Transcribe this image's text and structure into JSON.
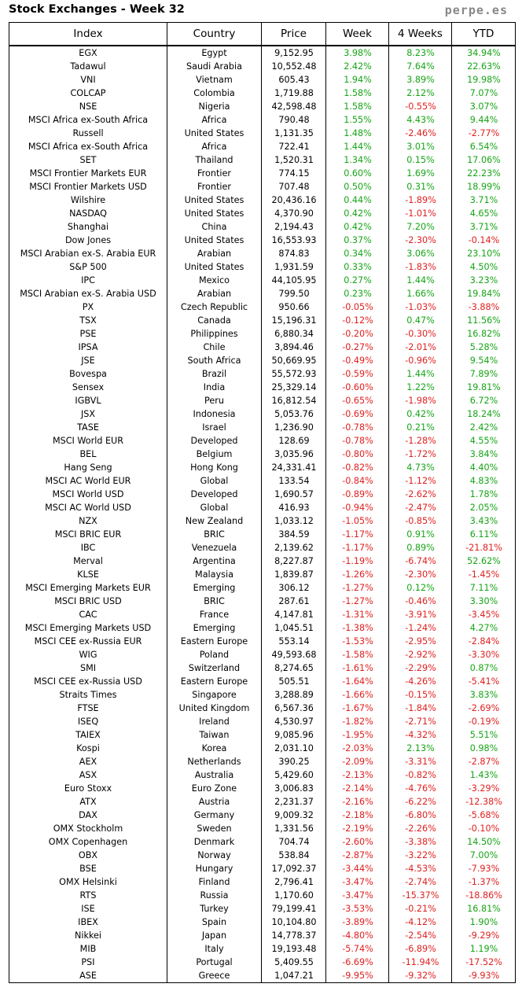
{
  "header": {
    "title": "Stock Exchanges - Week 32",
    "site": "perpe.es"
  },
  "columns": [
    "Index",
    "Country",
    "Price",
    "Week",
    "4 Weeks",
    "YTD"
  ],
  "colors": {
    "positive": "#16a516",
    "negative": "#e02020"
  },
  "rows": [
    [
      "EGX",
      "Egypt",
      "9,152.95",
      "3.98%",
      "8.23%",
      "34.94%"
    ],
    [
      "Tadawul",
      "Saudi Arabia",
      "10,552.48",
      "2.42%",
      "7.64%",
      "22.63%"
    ],
    [
      "VNI",
      "Vietnam",
      "605.43",
      "1.94%",
      "3.89%",
      "19.98%"
    ],
    [
      "COLCAP",
      "Colombia",
      "1,719.88",
      "1.58%",
      "2.12%",
      "7.07%"
    ],
    [
      "NSE",
      "Nigeria",
      "42,598.48",
      "1.58%",
      "-0.55%",
      "3.07%"
    ],
    [
      "MSCI Africa ex-South Africa",
      "Africa",
      "790.48",
      "1.55%",
      "4.43%",
      "9.44%"
    ],
    [
      "Russell",
      "United States",
      "1,131.35",
      "1.48%",
      "-2.46%",
      "-2.77%"
    ],
    [
      "MSCI Africa ex-South Africa",
      "Africa",
      "722.41",
      "1.44%",
      "3.01%",
      "6.54%"
    ],
    [
      "SET",
      "Thailand",
      "1,520.31",
      "1.34%",
      "0.15%",
      "17.06%"
    ],
    [
      "MSCI Frontier Markets EUR",
      "Frontier",
      "774.15",
      "0.60%",
      "1.69%",
      "22.23%"
    ],
    [
      "MSCI Frontier Markets USD",
      "Frontier",
      "707.48",
      "0.50%",
      "0.31%",
      "18.99%"
    ],
    [
      "Wilshire",
      "United States",
      "20,436.16",
      "0.44%",
      "-1.89%",
      "3.71%"
    ],
    [
      "NASDAQ",
      "United States",
      "4,370.90",
      "0.42%",
      "-1.01%",
      "4.65%"
    ],
    [
      "Shanghai",
      "China",
      "2,194.43",
      "0.42%",
      "7.20%",
      "3.71%"
    ],
    [
      "Dow Jones",
      "United States",
      "16,553.93",
      "0.37%",
      "-2.30%",
      "-0.14%"
    ],
    [
      "MSCI Arabian ex-S. Arabia EUR",
      "Arabian",
      "874.83",
      "0.34%",
      "3.06%",
      "23.10%"
    ],
    [
      "S&P 500",
      "United States",
      "1,931.59",
      "0.33%",
      "-1.83%",
      "4.50%"
    ],
    [
      "IPC",
      "Mexico",
      "44,105.95",
      "0.27%",
      "1.44%",
      "3.23%"
    ],
    [
      "MSCI Arabian ex-S. Arabia USD",
      "Arabian",
      "799.50",
      "0.23%",
      "1.66%",
      "19.84%"
    ],
    [
      "PX",
      "Czech Republic",
      "950.66",
      "-0.05%",
      "-1.03%",
      "-3.88%"
    ],
    [
      "TSX",
      "Canada",
      "15,196.31",
      "-0.12%",
      "0.47%",
      "11.56%"
    ],
    [
      "PSE",
      "Philippines",
      "6,880.34",
      "-0.20%",
      "-0.30%",
      "16.82%"
    ],
    [
      "IPSA",
      "Chile",
      "3,894.46",
      "-0.27%",
      "-2.01%",
      "5.28%"
    ],
    [
      "JSE",
      "South Africa",
      "50,669.95",
      "-0.49%",
      "-0.96%",
      "9.54%"
    ],
    [
      "Bovespa",
      "Brazil",
      "55,572.93",
      "-0.59%",
      "1.44%",
      "7.89%"
    ],
    [
      "Sensex",
      "India",
      "25,329.14",
      "-0.60%",
      "1.22%",
      "19.81%"
    ],
    [
      "IGBVL",
      "Peru",
      "16,812.54",
      "-0.65%",
      "-1.98%",
      "6.72%"
    ],
    [
      "JSX",
      "Indonesia",
      "5,053.76",
      "-0.69%",
      "0.42%",
      "18.24%"
    ],
    [
      "TASE",
      "Israel",
      "1,236.90",
      "-0.78%",
      "0.21%",
      "2.42%"
    ],
    [
      "MSCI World EUR",
      "Developed",
      "128.69",
      "-0.78%",
      "-1.28%",
      "4.55%"
    ],
    [
      "BEL",
      "Belgium",
      "3,035.96",
      "-0.80%",
      "-1.72%",
      "3.84%"
    ],
    [
      "Hang Seng",
      "Hong Kong",
      "24,331.41",
      "-0.82%",
      "4.73%",
      "4.40%"
    ],
    [
      "MSCI AC World EUR",
      "Global",
      "133.54",
      "-0.84%",
      "-1.12%",
      "4.83%"
    ],
    [
      "MSCI World USD",
      "Developed",
      "1,690.57",
      "-0.89%",
      "-2.62%",
      "1.78%"
    ],
    [
      "MSCI AC World USD",
      "Global",
      "416.93",
      "-0.94%",
      "-2.47%",
      "2.05%"
    ],
    [
      "NZX",
      "New Zealand",
      "1,033.12",
      "-1.05%",
      "-0.85%",
      "3.43%"
    ],
    [
      "MSCI BRIC EUR",
      "BRIC",
      "384.59",
      "-1.17%",
      "0.91%",
      "6.11%"
    ],
    [
      "IBC",
      "Venezuela",
      "2,139.62",
      "-1.17%",
      "0.89%",
      "-21.81%"
    ],
    [
      "Merval",
      "Argentina",
      "8,227.87",
      "-1.19%",
      "-6.74%",
      "52.62%"
    ],
    [
      "KLSE",
      "Malaysia",
      "1,839.87",
      "-1.26%",
      "-2.30%",
      "-1.45%"
    ],
    [
      "MSCI Emerging Markets EUR",
      "Emerging",
      "306.12",
      "-1.27%",
      "0.12%",
      "7.11%"
    ],
    [
      "MSCI BRIC USD",
      "BRIC",
      "287.61",
      "-1.27%",
      "-0.46%",
      "3.30%"
    ],
    [
      "CAC",
      "France",
      "4,147.81",
      "-1.31%",
      "-3.91%",
      "-3.45%"
    ],
    [
      "MSCI Emerging Markets USD",
      "Emerging",
      "1,045.51",
      "-1.38%",
      "-1.24%",
      "4.27%"
    ],
    [
      "MSCI CEE ex-Russia EUR",
      "Eastern Europe",
      "553.14",
      "-1.53%",
      "-2.95%",
      "-2.84%"
    ],
    [
      "WIG",
      "Poland",
      "49,593.68",
      "-1.58%",
      "-2.92%",
      "-3.30%"
    ],
    [
      "SMI",
      "Switzerland",
      "8,274.65",
      "-1.61%",
      "-2.29%",
      "0.87%"
    ],
    [
      "MSCI CEE ex-Russia USD",
      "Eastern Europe",
      "505.51",
      "-1.64%",
      "-4.26%",
      "-5.41%"
    ],
    [
      "Straits Times",
      "Singapore",
      "3,288.89",
      "-1.66%",
      "-0.15%",
      "3.83%"
    ],
    [
      "FTSE",
      "United Kingdom",
      "6,567.36",
      "-1.67%",
      "-1.84%",
      "-2.69%"
    ],
    [
      "ISEQ",
      "Ireland",
      "4,530.97",
      "-1.82%",
      "-2.71%",
      "-0.19%"
    ],
    [
      "TAIEX",
      "Taiwan",
      "9,085.96",
      "-1.95%",
      "-4.32%",
      "5.51%"
    ],
    [
      "Kospi",
      "Korea",
      "2,031.10",
      "-2.03%",
      "2.13%",
      "0.98%"
    ],
    [
      "AEX",
      "Netherlands",
      "390.25",
      "-2.09%",
      "-3.31%",
      "-2.87%"
    ],
    [
      "ASX",
      "Australia",
      "5,429.60",
      "-2.13%",
      "-0.82%",
      "1.43%"
    ],
    [
      "Euro Stoxx",
      "Euro Zone",
      "3,006.83",
      "-2.14%",
      "-4.76%",
      "-3.29%"
    ],
    [
      "ATX",
      "Austria",
      "2,231.37",
      "-2.16%",
      "-6.22%",
      "-12.38%"
    ],
    [
      "DAX",
      "Germany",
      "9,009.32",
      "-2.18%",
      "-6.80%",
      "-5.68%"
    ],
    [
      "OMX Stockholm",
      "Sweden",
      "1,331.56",
      "-2.19%",
      "-2.26%",
      "-0.10%"
    ],
    [
      "OMX Copenhagen",
      "Denmark",
      "704.74",
      "-2.60%",
      "-3.38%",
      "14.50%"
    ],
    [
      "OBX",
      "Norway",
      "538.84",
      "-2.87%",
      "-3.22%",
      "7.00%"
    ],
    [
      "BSE",
      "Hungary",
      "17,092.37",
      "-3.44%",
      "-4.53%",
      "-7.93%"
    ],
    [
      "OMX Helsinki",
      "Finland",
      "2,796.41",
      "-3.47%",
      "-2.74%",
      "-1.37%"
    ],
    [
      "RTS",
      "Russia",
      "1,170.60",
      "-3.47%",
      "-15.37%",
      "-18.86%"
    ],
    [
      "ISE",
      "Turkey",
      "79,199.41",
      "-3.53%",
      "-0.21%",
      "16.81%"
    ],
    [
      "IBEX",
      "Spain",
      "10,104.80",
      "-3.89%",
      "-4.12%",
      "1.90%"
    ],
    [
      "Nikkei",
      "Japan",
      "14,778.37",
      "-4.80%",
      "-2.54%",
      "-9.29%"
    ],
    [
      "MIB",
      "Italy",
      "19,193.48",
      "-5.74%",
      "-6.89%",
      "1.19%"
    ],
    [
      "PSI",
      "Portugal",
      "5,409.55",
      "-6.69%",
      "-11.94%",
      "-17.52%"
    ],
    [
      "ASE",
      "Greece",
      "1,047.21",
      "-9.95%",
      "-9.32%",
      "-9.93%"
    ]
  ]
}
